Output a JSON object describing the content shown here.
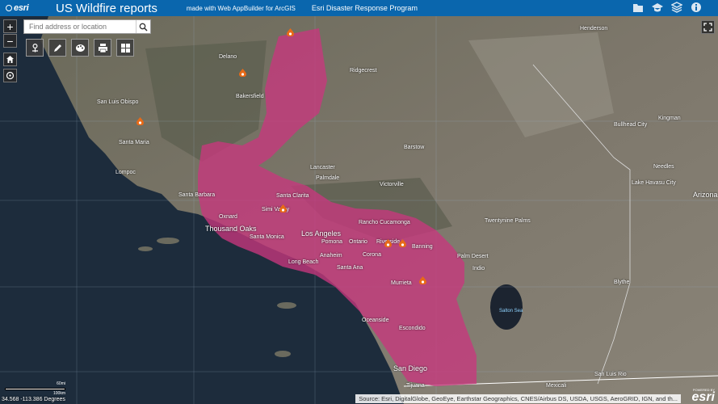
{
  "header": {
    "logo_text": "esri",
    "logo_sub": "THE SCIENCE OF WHERE",
    "title": "US Wildfire reports",
    "subtitle": "made with Web AppBuilder for ArcGIS",
    "program": "Esri Disaster Response Program",
    "icons": [
      "folder-icon",
      "education-cap-icon",
      "layers-icon",
      "info-icon"
    ],
    "bg_color": "#0a66ad"
  },
  "search": {
    "placeholder": "Find address or location"
  },
  "widget_icons": [
    "location-pin-icon",
    "pencil-icon",
    "palette-icon",
    "print-icon",
    "grid-icon"
  ],
  "perimeter_color": "#c8377d",
  "cities": [
    {
      "name": "Henderson",
      "big": false
    },
    {
      "name": "Ridgecrest",
      "big": false
    },
    {
      "name": "Bakersfield",
      "big": false
    },
    {
      "name": "Delano",
      "big": false
    },
    {
      "name": "San Luis Obispo",
      "big": false
    },
    {
      "name": "Santa Maria",
      "big": false
    },
    {
      "name": "Lompoc",
      "big": false
    },
    {
      "name": "Barstow",
      "big": false
    },
    {
      "name": "Needles",
      "big": false
    },
    {
      "name": "Lake Havasu City",
      "big": false
    },
    {
      "name": "Bullhead City",
      "big": false
    },
    {
      "name": "Kingman",
      "big": false
    },
    {
      "name": "Lancaster",
      "big": false
    },
    {
      "name": "Palmdale",
      "big": false
    },
    {
      "name": "Victorville",
      "big": false
    },
    {
      "name": "Twentynine Palms",
      "big": false
    },
    {
      "name": "Santa Barbara",
      "big": false
    },
    {
      "name": "Santa Clarita",
      "big": false
    },
    {
      "name": "Simi Valley",
      "big": false
    },
    {
      "name": "Oxnard",
      "big": false
    },
    {
      "name": "Thousand Oaks",
      "big": true
    },
    {
      "name": "Santa Monica",
      "big": false
    },
    {
      "name": "Los Angeles",
      "big": true
    },
    {
      "name": "Pomona",
      "big": false
    },
    {
      "name": "Ontario",
      "big": false
    },
    {
      "name": "Rancho Cucamonga",
      "big": false
    },
    {
      "name": "Riverside",
      "big": false
    },
    {
      "name": "Banning",
      "big": false
    },
    {
      "name": "Long Beach",
      "big": false
    },
    {
      "name": "Anaheim",
      "big": false
    },
    {
      "name": "Corona",
      "big": false
    },
    {
      "name": "Santa Ana",
      "big": false
    },
    {
      "name": "Palm Desert",
      "big": false
    },
    {
      "name": "Indio",
      "big": false
    },
    {
      "name": "Murrieta",
      "big": false
    },
    {
      "name": "Oceanside",
      "big": false
    },
    {
      "name": "Escondido",
      "big": false
    },
    {
      "name": "San Diego",
      "big": true
    },
    {
      "name": "Tijuana",
      "big": false
    },
    {
      "name": "Mexicali",
      "big": false
    },
    {
      "name": "San Luis Rio",
      "big": false
    },
    {
      "name": "Blythe",
      "big": false
    },
    {
      "name": "Arizona",
      "big": true
    }
  ],
  "water_label": "Salton Sea",
  "coords": "34.568 -113.386 Degrees",
  "scale": {
    "top": "60mi",
    "bottom": "100km"
  },
  "attribution": "Source: Esri, DigitalGlobe, GeoEye, Earthstar Geographics, CNES/Airbus DS, USDA, USGS, AeroGRID, IGN, and th...",
  "powered": {
    "label": "POWERED BY",
    "brand": "esri"
  }
}
